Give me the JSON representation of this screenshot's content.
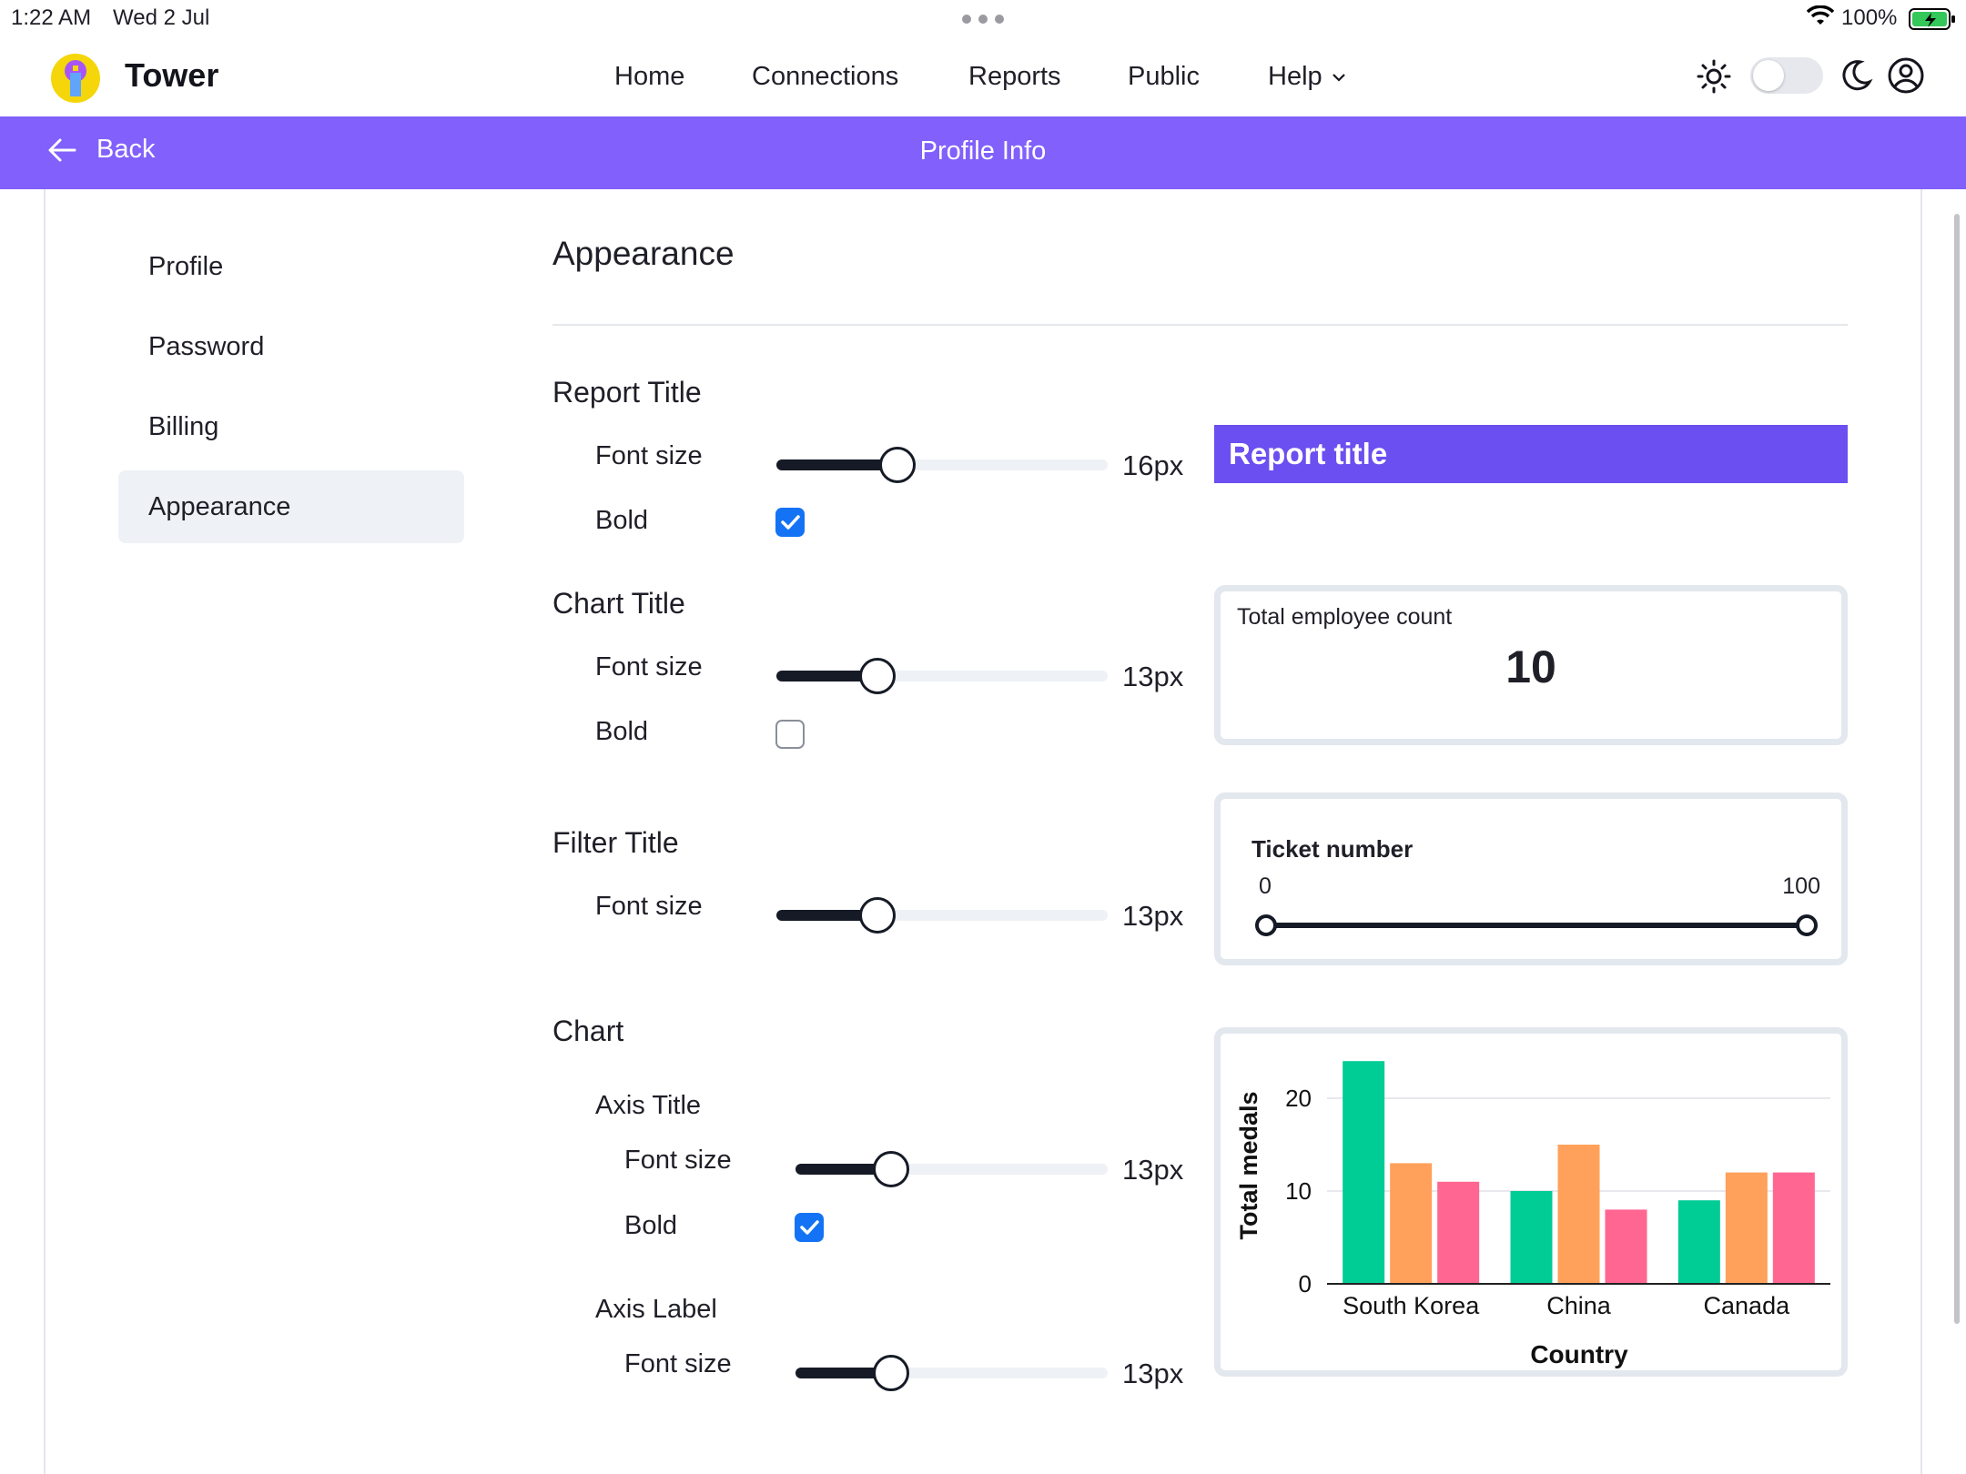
{
  "status": {
    "time": "1:22 AM",
    "date": "Wed 2 Jul",
    "battery": "100%"
  },
  "nav": {
    "brand": "Tower",
    "links": [
      "Home",
      "Connections",
      "Reports",
      "Public",
      "Help"
    ]
  },
  "subbar": {
    "back": "Back",
    "title": "Profile Info"
  },
  "sidebar": {
    "items": [
      "Profile",
      "Password",
      "Billing",
      "Appearance"
    ],
    "active": "Appearance"
  },
  "main": {
    "heading": "Appearance",
    "report_title": {
      "section": "Report Title",
      "font_label": "Font size",
      "font_value": "16px",
      "font_fraction": 0.35,
      "bold_label": "Bold",
      "bold": true
    },
    "chart_title": {
      "section": "Chart Title",
      "font_label": "Font size",
      "font_value": "13px",
      "font_fraction": 0.28,
      "bold_label": "Bold",
      "bold": false
    },
    "filter_title": {
      "section": "Filter Title",
      "font_label": "Font size",
      "font_value": "13px",
      "font_fraction": 0.28
    },
    "chart": {
      "section": "Chart",
      "axis_title": {
        "label": "Axis Title",
        "font_label": "Font size",
        "font_value": "13px",
        "font_fraction": 0.28,
        "bold_label": "Bold",
        "bold": true
      },
      "axis_label": {
        "label": "Axis Label",
        "font_label": "Font size",
        "font_value": "13px",
        "font_fraction": 0.28
      }
    }
  },
  "previews": {
    "report_title": "Report title",
    "kpi": {
      "label": "Total employee count",
      "value": "10"
    },
    "filter": {
      "label": "Ticket number",
      "min": "0",
      "max": "100"
    }
  },
  "colors": {
    "accent": "#8160fb",
    "report_title_bg": "#6c4ff0",
    "checkbox": "#1473f5",
    "series": [
      "#00cc96",
      "#ffa15a",
      "#ff6692"
    ]
  },
  "chart_data": {
    "type": "bar",
    "categories": [
      "South Korea",
      "China",
      "Canada"
    ],
    "series": [
      {
        "values": [
          24,
          10,
          9
        ]
      },
      {
        "values": [
          13,
          15,
          12
        ]
      },
      {
        "values": [
          11,
          8,
          12
        ]
      }
    ],
    "xlabel": "Country",
    "ylabel": "Total medals",
    "yticks": [
      0,
      10,
      20
    ],
    "ylim": [
      0,
      25
    ]
  }
}
